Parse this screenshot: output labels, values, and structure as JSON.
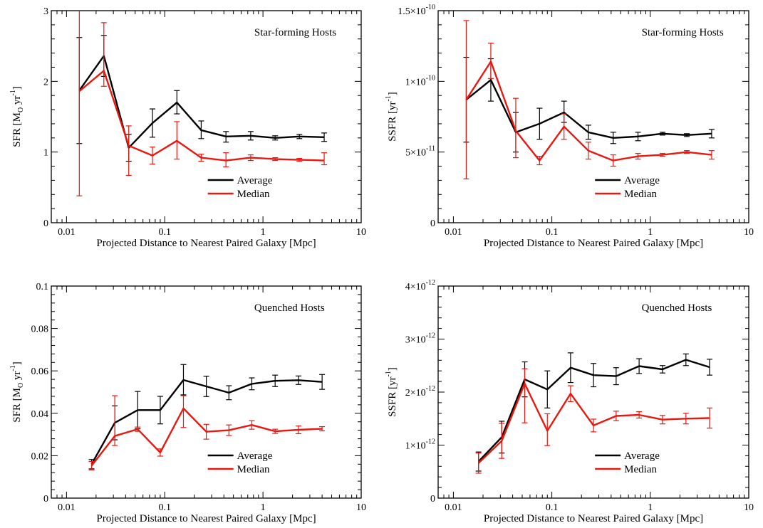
{
  "colors": {
    "average": "#000000",
    "median": "#e8180f"
  },
  "chart_data": [
    {
      "type": "line",
      "panel": "top-left",
      "annotation": "Star-forming Hosts",
      "xlabel": "Projected Distance to Nearest Paired Galaxy [Mpc]",
      "ylabel": "SFR [M⊙ yr⁻¹]",
      "ylabel_parts": {
        "main": "SFR [M",
        "sub": "O",
        "unit": " yr",
        "sup": "-1",
        "close": "]"
      },
      "xscale": "log",
      "xlim": [
        0.007,
        10
      ],
      "ylim": [
        0,
        3
      ],
      "xticks": [
        0.01,
        0.1,
        1,
        10
      ],
      "xtick_labels": [
        "0.01",
        "0.1",
        "1",
        "10"
      ],
      "yticks": [
        0,
        1,
        2,
        3
      ],
      "ytick_labels": [
        {
          "base": "0",
          "exp": ""
        },
        {
          "base": "1",
          "exp": ""
        },
        {
          "base": "2",
          "exp": ""
        },
        {
          "base": "3",
          "exp": ""
        }
      ],
      "legend": {
        "position": "lower-right",
        "entries": [
          "Average",
          "Median"
        ]
      },
      "grid": false,
      "x": [
        0.0135,
        0.024,
        0.043,
        0.075,
        0.133,
        0.235,
        0.42,
        0.75,
        1.33,
        2.35,
        4.2
      ],
      "series": [
        {
          "name": "Average",
          "color": "#000000",
          "values": [
            1.87,
            2.36,
            1.06,
            1.41,
            1.7,
            1.31,
            1.22,
            1.23,
            1.2,
            1.22,
            1.21
          ],
          "err_low": [
            0.75,
            0.29,
            0.19,
            0.2,
            0.16,
            0.12,
            0.08,
            0.06,
            0.03,
            0.03,
            0.06
          ],
          "err_high": [
            0.75,
            0.29,
            0.19,
            0.2,
            0.17,
            0.13,
            0.07,
            0.06,
            0.03,
            0.03,
            0.06
          ]
        },
        {
          "name": "Median",
          "color": "#e8180f",
          "values": [
            1.86,
            2.15,
            1.09,
            0.95,
            1.16,
            0.92,
            0.88,
            0.92,
            0.9,
            0.89,
            0.88
          ],
          "err_low": [
            1.48,
            0.22,
            0.42,
            0.12,
            0.26,
            0.05,
            0.09,
            0.04,
            0.02,
            0.02,
            0.06
          ],
          "err_high": [
            1.48,
            0.68,
            0.28,
            0.12,
            0.27,
            0.05,
            0.11,
            0.04,
            0.02,
            0.02,
            0.11
          ]
        }
      ]
    },
    {
      "type": "line",
      "panel": "top-right",
      "annotation": "Star-forming Hosts",
      "xlabel": "Projected Distance to Nearest Paired Galaxy [Mpc]",
      "ylabel": "SSFR [yr⁻¹]",
      "ylabel_parts": {
        "main": "SSFR [yr",
        "sup": "-1",
        "close": "]"
      },
      "xscale": "log",
      "xlim": [
        0.007,
        10
      ],
      "ylim": [
        0,
        1.5e-10
      ],
      "xticks": [
        0.01,
        0.1,
        1,
        10
      ],
      "xtick_labels": [
        "0.01",
        "0.1",
        "1",
        "10"
      ],
      "yticks": [
        0,
        5e-11,
        1e-10,
        1.5e-10
      ],
      "ytick_labels": [
        {
          "base": "0",
          "exp": ""
        },
        {
          "base": "5×10",
          "exp": "-11"
        },
        {
          "base": "1×10",
          "exp": "-10"
        },
        {
          "base": "1.5×10",
          "exp": "-10"
        }
      ],
      "legend": {
        "position": "lower-right",
        "entries": [
          "Average",
          "Median"
        ]
      },
      "grid": false,
      "x": [
        0.0135,
        0.024,
        0.043,
        0.075,
        0.133,
        0.235,
        0.42,
        0.75,
        1.33,
        2.35,
        4.2
      ],
      "series": [
        {
          "name": "Average",
          "color": "#000000",
          "values": [
            8.7e-11,
            1.01e-10,
            6.4e-11,
            7e-11,
            7.8e-11,
            6.4e-11,
            6e-11,
            6.1e-11,
            6.3e-11,
            6.2e-11,
            6.3e-11
          ],
          "err_low": [
            3e-11,
            1.5e-11,
            1.4e-11,
            1.1e-11,
            7e-12,
            5e-12,
            4e-12,
            3e-12,
            1e-12,
            1e-12,
            3e-12
          ],
          "err_high": [
            3e-11,
            1.5e-11,
            1.4e-11,
            1.1e-11,
            8e-12,
            5e-12,
            4e-12,
            3e-12,
            1e-12,
            1e-12,
            3e-12
          ]
        },
        {
          "name": "Median",
          "color": "#e8180f",
          "values": [
            8.7e-11,
            1.14e-10,
            6.5e-11,
            4.4e-11,
            6.8e-11,
            5.1e-11,
            4.4e-11,
            4.7e-11,
            4.8e-11,
            5e-11,
            4.8e-11
          ],
          "err_low": [
            5.6e-11,
            1.2e-11,
            1.9e-11,
            3e-12,
            9e-12,
            6e-12,
            4e-12,
            2e-12,
            1e-12,
            1e-12,
            3e-12
          ],
          "err_high": [
            5.6e-11,
            1.3e-11,
            2.3e-11,
            3e-12,
            9e-12,
            6e-12,
            4e-12,
            2e-12,
            1e-12,
            1e-12,
            3e-12
          ]
        }
      ]
    },
    {
      "type": "line",
      "panel": "bottom-left",
      "annotation": "Quenched Hosts",
      "xlabel": "Projected Distance to Nearest Paired Galaxy [Mpc]",
      "ylabel": "SFR [M⊙ yr⁻¹]",
      "ylabel_parts": {
        "main": "SFR [M",
        "sub": "O",
        "unit": " yr",
        "sup": "-1",
        "close": "]"
      },
      "xscale": "log",
      "xlim": [
        0.007,
        10
      ],
      "ylim": [
        0,
        0.1
      ],
      "xticks": [
        0.01,
        0.1,
        1,
        10
      ],
      "xtick_labels": [
        "0.01",
        "0.1",
        "1",
        "10"
      ],
      "yticks": [
        0,
        0.02,
        0.04,
        0.06,
        0.08,
        0.1
      ],
      "ytick_labels": [
        {
          "base": "0",
          "exp": ""
        },
        {
          "base": "0.02",
          "exp": ""
        },
        {
          "base": "0.04",
          "exp": ""
        },
        {
          "base": "0.06",
          "exp": ""
        },
        {
          "base": "0.08",
          "exp": ""
        },
        {
          "base": "0.1",
          "exp": ""
        }
      ],
      "legend": {
        "position": "lower-right",
        "entries": [
          "Average",
          "Median"
        ]
      },
      "grid": false,
      "x": [
        0.018,
        0.031,
        0.053,
        0.09,
        0.155,
        0.265,
        0.45,
        0.77,
        1.33,
        2.3,
        4.0
      ],
      "series": [
        {
          "name": "Average",
          "color": "#000000",
          "values": [
            0.016,
            0.0355,
            0.0415,
            0.0415,
            0.0557,
            0.0527,
            0.0497,
            0.0539,
            0.0553,
            0.0556,
            0.0548
          ],
          "err_low": [
            0.0022,
            0.008,
            0.0088,
            0.0065,
            0.007,
            0.0048,
            0.0033,
            0.0028,
            0.0027,
            0.002,
            0.0035
          ],
          "err_high": [
            0.0022,
            0.008,
            0.0088,
            0.0065,
            0.0073,
            0.0048,
            0.0033,
            0.0028,
            0.0027,
            0.002,
            0.0035
          ]
        },
        {
          "name": "Median",
          "color": "#e8180f",
          "values": [
            0.0153,
            0.0293,
            0.0325,
            0.0215,
            0.0423,
            0.0313,
            0.032,
            0.0345,
            0.0315,
            0.0322,
            0.0327
          ],
          "err_low": [
            0.002,
            0.0045,
            0.001,
            0.0017,
            0.009,
            0.0035,
            0.0025,
            0.002,
            0.001,
            0.0018,
            0.001
          ],
          "err_high": [
            0.002,
            0.019,
            0.001,
            0.0017,
            0.006,
            0.0035,
            0.0025,
            0.002,
            0.001,
            0.0018,
            0.001
          ]
        }
      ]
    },
    {
      "type": "line",
      "panel": "bottom-right",
      "annotation": "Quenched Hosts",
      "xlabel": "Projected Distance to Nearest Paired Galaxy [Mpc]",
      "ylabel": "SSFR [yr⁻¹]",
      "ylabel_parts": {
        "main": "SSFR [yr",
        "sup": "-1",
        "close": "]"
      },
      "xscale": "log",
      "xlim": [
        0.007,
        10
      ],
      "ylim": [
        0,
        4e-12
      ],
      "xticks": [
        0.01,
        0.1,
        1,
        10
      ],
      "xtick_labels": [
        "0.01",
        "0.1",
        "1",
        "10"
      ],
      "yticks": [
        0,
        1e-12,
        2e-12,
        3e-12,
        4e-12
      ],
      "ytick_labels": [
        {
          "base": "0",
          "exp": ""
        },
        {
          "base": "1×10",
          "exp": "-12"
        },
        {
          "base": "2×10",
          "exp": "-12"
        },
        {
          "base": "3×10",
          "exp": "-12"
        },
        {
          "base": "4×10",
          "exp": "-12"
        }
      ],
      "legend": {
        "position": "lower-right",
        "entries": [
          "Average",
          "Median"
        ]
      },
      "grid": false,
      "x": [
        0.018,
        0.031,
        0.053,
        0.09,
        0.155,
        0.265,
        0.45,
        0.77,
        1.33,
        2.3,
        4.0
      ],
      "series": [
        {
          "name": "Average",
          "color": "#000000",
          "values": [
            6.9e-13,
            1.15e-12,
            2.24e-12,
            2.05e-12,
            2.46e-12,
            2.32e-12,
            2.3e-12,
            2.49e-12,
            2.43e-12,
            2.61e-12,
            2.47e-12
          ],
          "err_low": [
            1.8e-13,
            3e-13,
            3.3e-13,
            3.5e-13,
            2.8e-13,
            2.2e-13,
            1.6e-13,
            1.4e-13,
            7e-14,
            1.1e-13,
            1.5e-13
          ],
          "err_high": [
            1.8e-13,
            3e-13,
            3.3e-13,
            3.5e-13,
            2.8e-13,
            2.2e-13,
            1.6e-13,
            1.4e-13,
            7e-14,
            1.1e-13,
            1.5e-13
          ]
        },
        {
          "name": "Median",
          "color": "#e8180f",
          "values": [
            6.6e-13,
            1.08e-12,
            2.16e-12,
            1.27e-12,
            1.97e-12,
            1.37e-12,
            1.55e-12,
            1.57e-12,
            1.48e-12,
            1.5e-12,
            1.51e-12
          ],
          "err_low": [
            1.9e-13,
            3.3e-13,
            7.4e-13,
            2.8e-13,
            1.5e-13,
            1.2e-13,
            9e-14,
            6e-14,
            8e-14,
            1e-13,
            1.9e-13
          ],
          "err_high": [
            1.9e-13,
            3.3e-13,
            2.8e-13,
            3.2e-13,
            1.5e-13,
            1.2e-13,
            9e-14,
            6e-14,
            8e-14,
            1e-13,
            1.9e-13
          ]
        }
      ]
    }
  ]
}
